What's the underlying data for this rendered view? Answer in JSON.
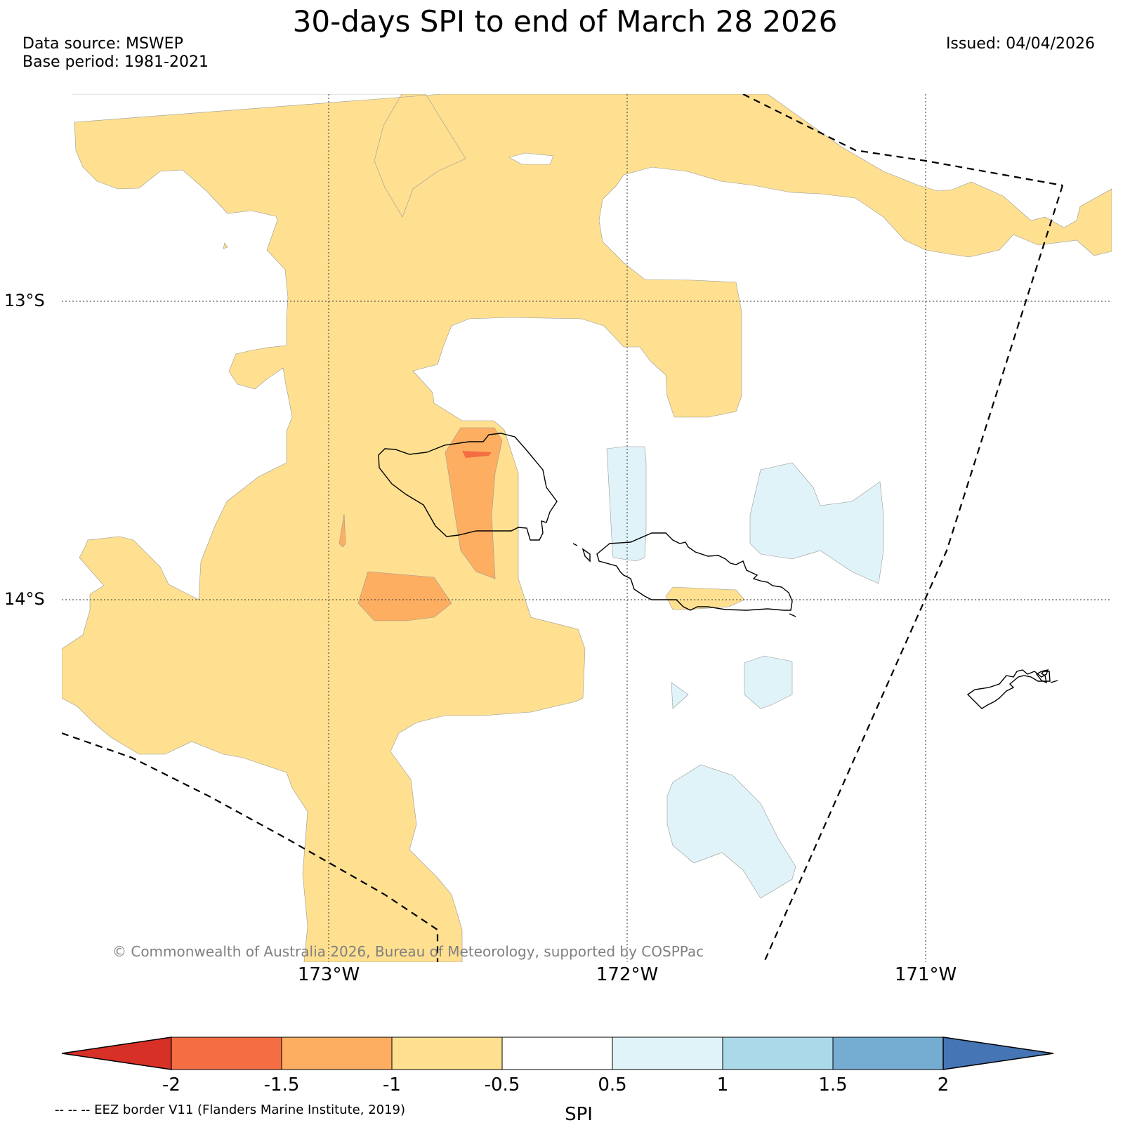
{
  "title": "30-days SPI to end of March 28 2026",
  "source": {
    "line1": "Data source: MSWEP",
    "line2": "Base period: 1981-2021"
  },
  "issued": "Issued: 04/04/2026",
  "axes": {
    "lat_labels": [
      "13°S",
      "14°S"
    ],
    "lon_labels": [
      "173°W",
      "172°W",
      "171°W"
    ]
  },
  "colorbar": {
    "label": "SPI",
    "ticks": [
      "-2",
      "-1.5",
      "-1",
      "-0.5",
      "0.5",
      "1",
      "1.5",
      "2"
    ],
    "colors": {
      "below_-2": "#d73027",
      "-2_to_-1.5": "#f46d43",
      "-1.5_to_-1": "#fdae61",
      "-1_to_-0.5": "#fee090",
      "-0.5_to_0.5": "#ffffff",
      "0.5_to_1": "#e0f3f8",
      "1_to_1.5": "#abd9e9",
      "1.5_to_2": "#74add1",
      "above_2": "#4575b4"
    }
  },
  "eez_note": "-- -- -- EEZ border V11 (Flanders Marine Institute, 2019)",
  "copyright": "© Commonwealth of Australia 2026, Bureau of Meteorology, supported by COSPPac"
}
